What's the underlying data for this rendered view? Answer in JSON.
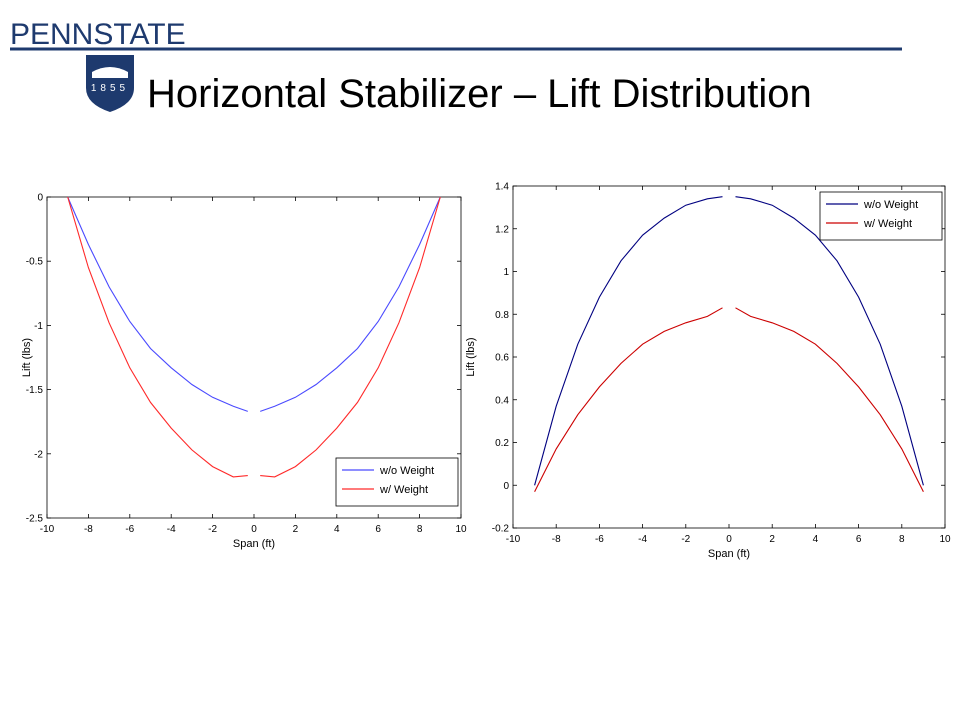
{
  "header": {
    "logo": "PENNSTATE",
    "year": "1855",
    "title": "Horizontal Stabilizer – Lift Distribution"
  },
  "chart_data": [
    {
      "type": "line",
      "xlabel": "Span (ft)",
      "ylabel": "Lift (lbs)",
      "x": [
        -9,
        -8,
        -7,
        -6,
        -5,
        -4,
        -3,
        -2,
        -1,
        -0.3,
        0,
        0.3,
        1,
        2,
        3,
        4,
        5,
        6,
        7,
        8,
        9
      ],
      "series": [
        {
          "name": "w/o Weight",
          "color": "#4a4aff",
          "values": [
            0,
            -0.37,
            -0.7,
            -0.97,
            -1.18,
            -1.33,
            -1.46,
            -1.56,
            -1.63,
            -1.67,
            null,
            -1.67,
            -1.63,
            -1.56,
            -1.46,
            -1.33,
            -1.18,
            -0.97,
            -0.7,
            -0.37,
            0
          ]
        },
        {
          "name": "w/ Weight",
          "color": "#ff2a2a",
          "values": [
            0,
            -0.55,
            -0.98,
            -1.33,
            -1.6,
            -1.8,
            -1.97,
            -2.1,
            -2.18,
            -2.17,
            null,
            -2.17,
            -2.18,
            -2.1,
            -1.97,
            -1.8,
            -1.6,
            -1.33,
            -0.98,
            -0.55,
            0
          ]
        }
      ],
      "xlim": [
        -10,
        10
      ],
      "xticks": [
        -10,
        -8,
        -6,
        -4,
        -2,
        0,
        2,
        4,
        6,
        8,
        10
      ],
      "ylim": [
        -2.5,
        0
      ],
      "yticks": [
        -2.5,
        -2,
        -1.5,
        -1,
        -0.5,
        0
      ],
      "legend": "lower right"
    },
    {
      "type": "line",
      "xlabel": "Span (ft)",
      "ylabel": "Lift (lbs)",
      "x": [
        -9,
        -8,
        -7,
        -6,
        -5,
        -4,
        -3,
        -2,
        -1,
        -0.3,
        0,
        0.3,
        1,
        2,
        3,
        4,
        5,
        6,
        7,
        8,
        9
      ],
      "series": [
        {
          "name": "w/o Weight",
          "color": "#000080",
          "values": [
            0,
            0.37,
            0.66,
            0.88,
            1.05,
            1.17,
            1.25,
            1.31,
            1.34,
            1.35,
            null,
            1.35,
            1.34,
            1.31,
            1.25,
            1.17,
            1.05,
            0.88,
            0.66,
            0.37,
            0
          ]
        },
        {
          "name": "w/ Weight",
          "color": "#cc0000",
          "values": [
            -0.03,
            0.17,
            0.33,
            0.46,
            0.57,
            0.66,
            0.72,
            0.76,
            0.79,
            0.83,
            null,
            0.83,
            0.79,
            0.76,
            0.72,
            0.66,
            0.57,
            0.46,
            0.33,
            0.17,
            -0.03
          ]
        }
      ],
      "xlim": [
        -10,
        10
      ],
      "xticks": [
        -10,
        -8,
        -6,
        -4,
        -2,
        0,
        2,
        4,
        6,
        8,
        10
      ],
      "ylim": [
        -0.2,
        1.4
      ],
      "yticks": [
        -0.2,
        0,
        0.2,
        0.4,
        0.6,
        0.8,
        1,
        1.2,
        1.4
      ],
      "legend": "upper right"
    }
  ]
}
